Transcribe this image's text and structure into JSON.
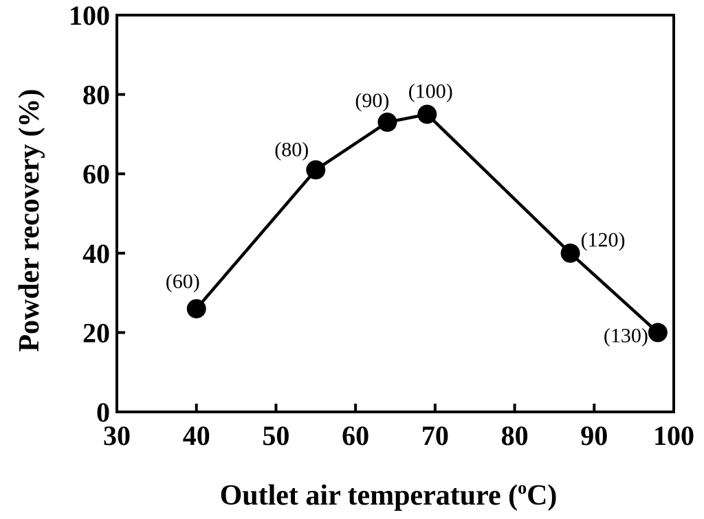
{
  "chart_data": {
    "type": "line",
    "title": "",
    "xlabel": "Outlet air temperature (",
    "xlabel_unit_degree": "o",
    "xlabel_unit_suffix": "C)",
    "ylabel": "Powder recovery (%)",
    "xlim": [
      30,
      100
    ],
    "ylim": [
      0,
      100
    ],
    "xticks": [
      30,
      40,
      50,
      60,
      70,
      80,
      90,
      100
    ],
    "yticks": [
      0,
      20,
      40,
      60,
      80,
      100
    ],
    "grid": false,
    "legend": "none",
    "series": [
      {
        "x": [
          40,
          55,
          64,
          69,
          87,
          98
        ],
        "y": [
          26,
          61,
          73,
          75,
          40,
          20
        ],
        "labels": [
          "(60)",
          "(80)",
          "(90)",
          "(100)",
          "(120)",
          "(130)"
        ],
        "color": "#000000",
        "marker": "circle"
      }
    ]
  }
}
